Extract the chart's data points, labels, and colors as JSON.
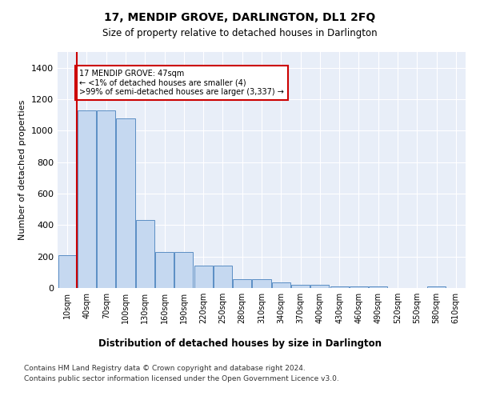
{
  "title": "17, MENDIP GROVE, DARLINGTON, DL1 2FQ",
  "subtitle": "Size of property relative to detached houses in Darlington",
  "xlabel": "Distribution of detached houses by size in Darlington",
  "ylabel": "Number of detached properties",
  "footer_line1": "Contains HM Land Registry data © Crown copyright and database right 2024.",
  "footer_line2": "Contains public sector information licensed under the Open Government Licence v3.0.",
  "annotation_line1": "17 MENDIP GROVE: 47sqm",
  "annotation_line2": "← <1% of detached houses are smaller (4)",
  "annotation_line3": ">99% of semi-detached houses are larger (3,337) →",
  "bar_color": "#c5d8f0",
  "bar_edge_color": "#5b8ec4",
  "red_line_color": "#cc0000",
  "annotation_box_edge_color": "#cc0000",
  "plot_bg_color": "#e8eef8",
  "categories": [
    "10sqm",
    "40sqm",
    "70sqm",
    "100sqm",
    "130sqm",
    "160sqm",
    "190sqm",
    "220sqm",
    "250sqm",
    "280sqm",
    "310sqm",
    "340sqm",
    "370sqm",
    "400sqm",
    "430sqm",
    "460sqm",
    "490sqm",
    "520sqm",
    "550sqm",
    "580sqm",
    "610sqm"
  ],
  "values": [
    210,
    1130,
    1130,
    1080,
    430,
    230,
    230,
    140,
    140,
    55,
    55,
    35,
    20,
    20,
    10,
    10,
    10,
    0,
    0,
    10,
    0
  ],
  "red_line_x": 0.5,
  "ylim": [
    0,
    1500
  ],
  "yticks": [
    0,
    200,
    400,
    600,
    800,
    1000,
    1200,
    1400
  ]
}
